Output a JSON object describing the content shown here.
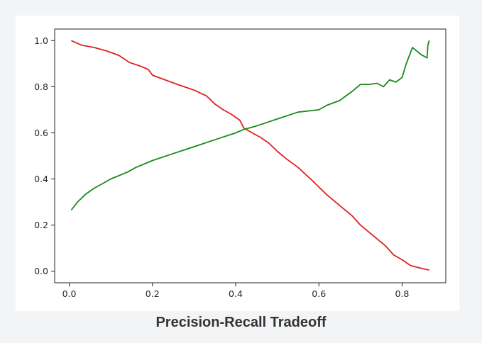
{
  "caption": "Precision-Recall Tradeoff",
  "colors": {
    "precision_line": "#e02020",
    "recall_line": "#1a8a1a"
  },
  "chart_data": {
    "type": "line",
    "title": "",
    "xlabel": "",
    "ylabel": "",
    "xlim": [
      -0.035,
      0.905
    ],
    "ylim": [
      -0.05,
      1.05
    ],
    "xticks": [
      0.0,
      0.2,
      0.4,
      0.6,
      0.8
    ],
    "xtick_labels": [
      "0.0",
      "0.2",
      "0.4",
      "0.6",
      "0.8"
    ],
    "yticks": [
      0.0,
      0.2,
      0.4,
      0.6,
      0.8,
      1.0
    ],
    "ytick_labels": [
      "0.0",
      "0.2",
      "0.4",
      "0.6",
      "0.8",
      "1.0"
    ],
    "grid": false,
    "legend": false,
    "series": [
      {
        "color": "red",
        "x": [
          0.005,
          0.03,
          0.06,
          0.09,
          0.12,
          0.145,
          0.17,
          0.19,
          0.2,
          0.23,
          0.26,
          0.3,
          0.33,
          0.35,
          0.37,
          0.39,
          0.41,
          0.42,
          0.44,
          0.46,
          0.48,
          0.5,
          0.52,
          0.55,
          0.58,
          0.6,
          0.62,
          0.64,
          0.66,
          0.68,
          0.7,
          0.72,
          0.74,
          0.76,
          0.78,
          0.8,
          0.82,
          0.84,
          0.865
        ],
        "y": [
          1.0,
          0.98,
          0.97,
          0.955,
          0.935,
          0.905,
          0.89,
          0.875,
          0.85,
          0.83,
          0.81,
          0.785,
          0.76,
          0.725,
          0.7,
          0.68,
          0.655,
          0.62,
          0.6,
          0.58,
          0.555,
          0.52,
          0.49,
          0.45,
          0.4,
          0.365,
          0.33,
          0.3,
          0.27,
          0.24,
          0.2,
          0.17,
          0.14,
          0.11,
          0.07,
          0.05,
          0.025,
          0.015,
          0.005
        ]
      },
      {
        "color": "green",
        "x": [
          0.005,
          0.02,
          0.04,
          0.06,
          0.08,
          0.1,
          0.12,
          0.14,
          0.16,
          0.2,
          0.25,
          0.3,
          0.35,
          0.4,
          0.42,
          0.45,
          0.5,
          0.55,
          0.6,
          0.62,
          0.65,
          0.68,
          0.7,
          0.72,
          0.74,
          0.755,
          0.77,
          0.785,
          0.8,
          0.81,
          0.825,
          0.835,
          0.845,
          0.86,
          0.862,
          0.865
        ],
        "y": [
          0.265,
          0.3,
          0.335,
          0.36,
          0.38,
          0.4,
          0.415,
          0.43,
          0.45,
          0.48,
          0.51,
          0.54,
          0.57,
          0.6,
          0.615,
          0.63,
          0.66,
          0.69,
          0.7,
          0.72,
          0.74,
          0.78,
          0.81,
          0.81,
          0.815,
          0.8,
          0.83,
          0.82,
          0.84,
          0.9,
          0.97,
          0.955,
          0.94,
          0.925,
          0.98,
          1.0
        ]
      }
    ]
  }
}
